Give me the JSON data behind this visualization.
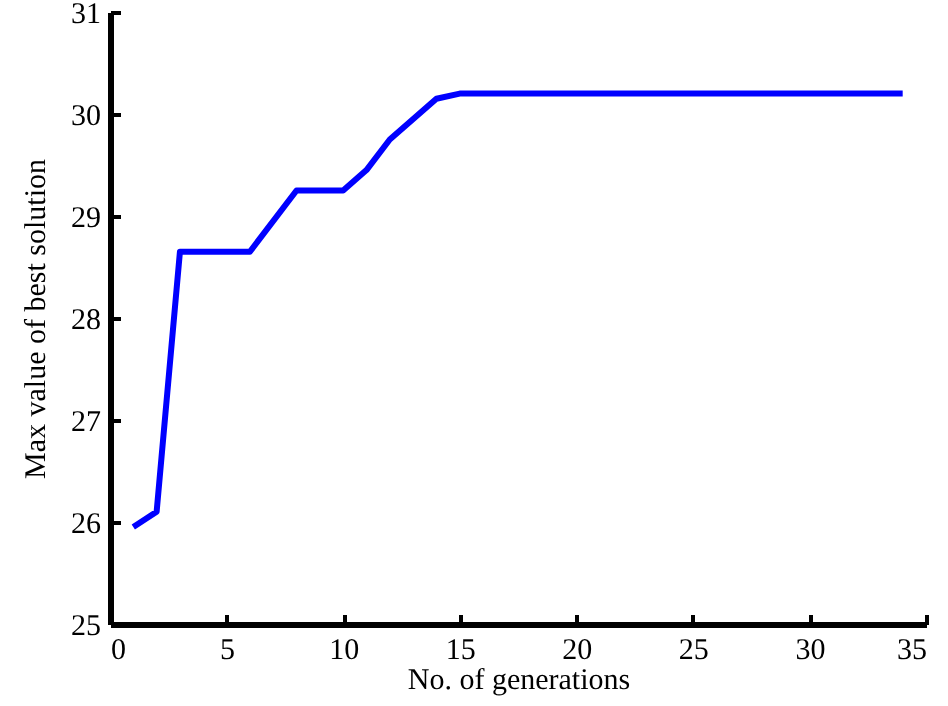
{
  "chart_data": {
    "type": "line",
    "xlabel": "No. of generations",
    "ylabel": "Max value of best solution",
    "x": [
      1,
      2,
      3,
      6,
      8,
      10,
      11,
      12,
      14,
      15,
      34
    ],
    "series": [
      {
        "color": "#0000ff",
        "values": [
          25.95,
          26.1,
          28.65,
          28.65,
          29.25,
          29.25,
          29.45,
          29.75,
          30.15,
          30.2,
          30.2
        ]
      }
    ],
    "xlim": [
      0,
      35
    ],
    "xticks": [
      0,
      5,
      10,
      15,
      20,
      25,
      30,
      35
    ],
    "ylim": [
      25,
      31
    ],
    "yticks": [
      25,
      26,
      27,
      28,
      29,
      30,
      31
    ],
    "grid": false,
    "marker": "none",
    "line_style": "solid"
  }
}
